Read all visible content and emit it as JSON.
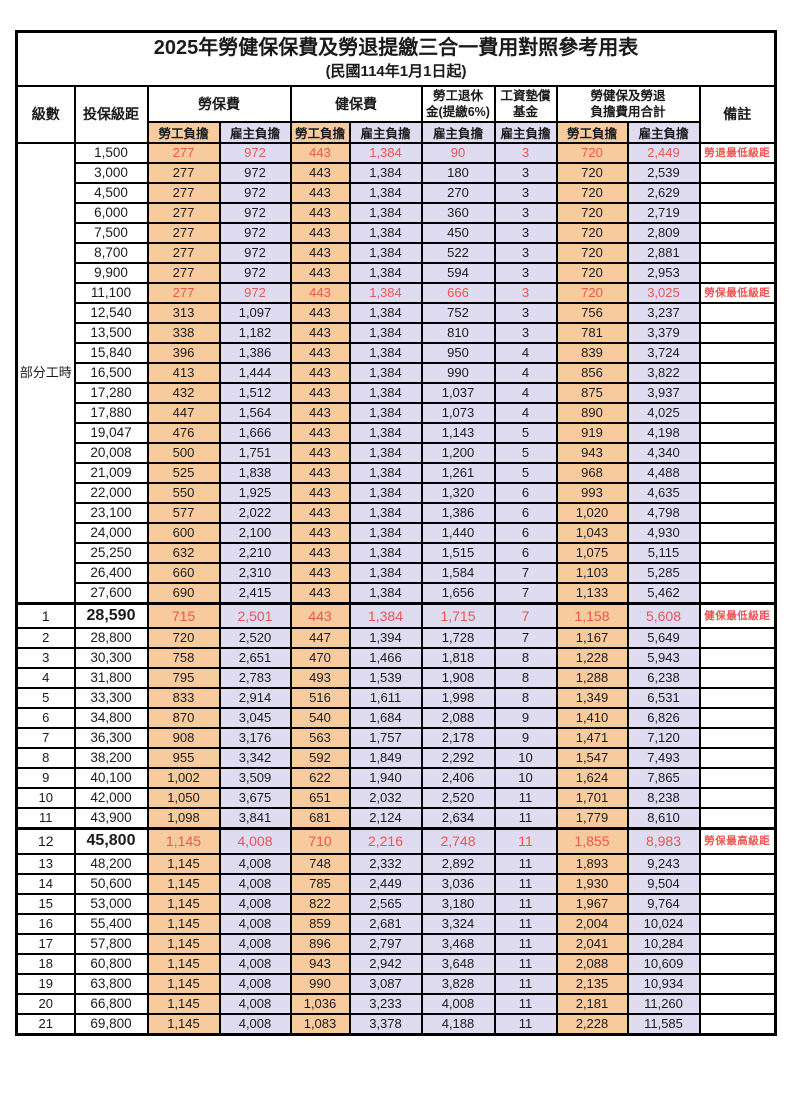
{
  "title": "2025年勞健保保費及勞退提繳三合一費用對照參考用表",
  "subtitle": "(民國114年1月1日起)",
  "colors": {
    "employee_bg": "#f8cb9e",
    "employer_bg": "#dfdbf1",
    "highlight_red": "#ee5550"
  },
  "header": {
    "level": "級數",
    "bracket": "投保級距",
    "labor": "勞保費",
    "health": "健保費",
    "pension_l1": "勞工退休",
    "pension_l2": "金(提繳6%)",
    "wagefund_l1": "工資墊償",
    "wagefund_l2": "基金",
    "total_l1": "勞健保及勞退",
    "total_l2": "負擔費用合計",
    "remark": "備註",
    "employee": "勞工負擔",
    "employer": "雇主負擔"
  },
  "part_time_label": "部分工時",
  "part_time_span": 23,
  "rows": [
    {
      "level": "",
      "bracket": "1,500",
      "values": [
        "277",
        "972",
        "443",
        "1,384",
        "90",
        "3",
        "720",
        "2,449"
      ],
      "remark": "勞退最低級距",
      "red": true
    },
    {
      "level": "",
      "bracket": "3,000",
      "values": [
        "277",
        "972",
        "443",
        "1,384",
        "180",
        "3",
        "720",
        "2,539"
      ],
      "remark": ""
    },
    {
      "level": "",
      "bracket": "4,500",
      "values": [
        "277",
        "972",
        "443",
        "1,384",
        "270",
        "3",
        "720",
        "2,629"
      ],
      "remark": ""
    },
    {
      "level": "",
      "bracket": "6,000",
      "values": [
        "277",
        "972",
        "443",
        "1,384",
        "360",
        "3",
        "720",
        "2,719"
      ],
      "remark": ""
    },
    {
      "level": "",
      "bracket": "7,500",
      "values": [
        "277",
        "972",
        "443",
        "1,384",
        "450",
        "3",
        "720",
        "2,809"
      ],
      "remark": ""
    },
    {
      "level": "",
      "bracket": "8,700",
      "values": [
        "277",
        "972",
        "443",
        "1,384",
        "522",
        "3",
        "720",
        "2,881"
      ],
      "remark": ""
    },
    {
      "level": "",
      "bracket": "9,900",
      "values": [
        "277",
        "972",
        "443",
        "1,384",
        "594",
        "3",
        "720",
        "2,953"
      ],
      "remark": ""
    },
    {
      "level": "",
      "bracket": "11,100",
      "values": [
        "277",
        "972",
        "443",
        "1,384",
        "666",
        "3",
        "720",
        "3,025"
      ],
      "remark": "勞保最低級距",
      "red": true
    },
    {
      "level": "",
      "bracket": "12,540",
      "values": [
        "313",
        "1,097",
        "443",
        "1,384",
        "752",
        "3",
        "756",
        "3,237"
      ],
      "remark": ""
    },
    {
      "level": "",
      "bracket": "13,500",
      "values": [
        "338",
        "1,182",
        "443",
        "1,384",
        "810",
        "3",
        "781",
        "3,379"
      ],
      "remark": ""
    },
    {
      "level": "",
      "bracket": "15,840",
      "values": [
        "396",
        "1,386",
        "443",
        "1,384",
        "950",
        "4",
        "839",
        "3,724"
      ],
      "remark": ""
    },
    {
      "level": "",
      "bracket": "16,500",
      "values": [
        "413",
        "1,444",
        "443",
        "1,384",
        "990",
        "4",
        "856",
        "3,822"
      ],
      "remark": ""
    },
    {
      "level": "",
      "bracket": "17,280",
      "values": [
        "432",
        "1,512",
        "443",
        "1,384",
        "1,037",
        "4",
        "875",
        "3,937"
      ],
      "remark": ""
    },
    {
      "level": "",
      "bracket": "17,880",
      "values": [
        "447",
        "1,564",
        "443",
        "1,384",
        "1,073",
        "4",
        "890",
        "4,025"
      ],
      "remark": ""
    },
    {
      "level": "",
      "bracket": "19,047",
      "values": [
        "476",
        "1,666",
        "443",
        "1,384",
        "1,143",
        "5",
        "919",
        "4,198"
      ],
      "remark": ""
    },
    {
      "level": "",
      "bracket": "20,008",
      "values": [
        "500",
        "1,751",
        "443",
        "1,384",
        "1,200",
        "5",
        "943",
        "4,340"
      ],
      "remark": ""
    },
    {
      "level": "",
      "bracket": "21,009",
      "values": [
        "525",
        "1,838",
        "443",
        "1,384",
        "1,261",
        "5",
        "968",
        "4,488"
      ],
      "remark": ""
    },
    {
      "level": "",
      "bracket": "22,000",
      "values": [
        "550",
        "1,925",
        "443",
        "1,384",
        "1,320",
        "6",
        "993",
        "4,635"
      ],
      "remark": ""
    },
    {
      "level": "",
      "bracket": "23,100",
      "values": [
        "577",
        "2,022",
        "443",
        "1,384",
        "1,386",
        "6",
        "1,020",
        "4,798"
      ],
      "remark": ""
    },
    {
      "level": "",
      "bracket": "24,000",
      "values": [
        "600",
        "2,100",
        "443",
        "1,384",
        "1,440",
        "6",
        "1,043",
        "4,930"
      ],
      "remark": ""
    },
    {
      "level": "",
      "bracket": "25,250",
      "values": [
        "632",
        "2,210",
        "443",
        "1,384",
        "1,515",
        "6",
        "1,075",
        "5,115"
      ],
      "remark": ""
    },
    {
      "level": "",
      "bracket": "26,400",
      "values": [
        "660",
        "2,310",
        "443",
        "1,384",
        "1,584",
        "7",
        "1,103",
        "5,285"
      ],
      "remark": ""
    },
    {
      "level": "",
      "bracket": "27,600",
      "values": [
        "690",
        "2,415",
        "443",
        "1,384",
        "1,656",
        "7",
        "1,133",
        "5,462"
      ],
      "remark": ""
    },
    {
      "level": "1",
      "bracket": "28,590",
      "values": [
        "715",
        "2,501",
        "443",
        "1,384",
        "1,715",
        "7",
        "1,158",
        "5,608"
      ],
      "remark": "健保最低級距",
      "red": true,
      "big": true,
      "thick_top": true
    },
    {
      "level": "2",
      "bracket": "28,800",
      "values": [
        "720",
        "2,520",
        "447",
        "1,394",
        "1,728",
        "7",
        "1,167",
        "5,649"
      ],
      "remark": ""
    },
    {
      "level": "3",
      "bracket": "30,300",
      "values": [
        "758",
        "2,651",
        "470",
        "1,466",
        "1,818",
        "8",
        "1,228",
        "5,943"
      ],
      "remark": ""
    },
    {
      "level": "4",
      "bracket": "31,800",
      "values": [
        "795",
        "2,783",
        "493",
        "1,539",
        "1,908",
        "8",
        "1,288",
        "6,238"
      ],
      "remark": ""
    },
    {
      "level": "5",
      "bracket": "33,300",
      "values": [
        "833",
        "2,914",
        "516",
        "1,611",
        "1,998",
        "8",
        "1,349",
        "6,531"
      ],
      "remark": ""
    },
    {
      "level": "6",
      "bracket": "34,800",
      "values": [
        "870",
        "3,045",
        "540",
        "1,684",
        "2,088",
        "9",
        "1,410",
        "6,826"
      ],
      "remark": ""
    },
    {
      "level": "7",
      "bracket": "36,300",
      "values": [
        "908",
        "3,176",
        "563",
        "1,757",
        "2,178",
        "9",
        "1,471",
        "7,120"
      ],
      "remark": ""
    },
    {
      "level": "8",
      "bracket": "38,200",
      "values": [
        "955",
        "3,342",
        "592",
        "1,849",
        "2,292",
        "10",
        "1,547",
        "7,493"
      ],
      "remark": ""
    },
    {
      "level": "9",
      "bracket": "40,100",
      "values": [
        "1,002",
        "3,509",
        "622",
        "1,940",
        "2,406",
        "10",
        "1,624",
        "7,865"
      ],
      "remark": ""
    },
    {
      "level": "10",
      "bracket": "42,000",
      "values": [
        "1,050",
        "3,675",
        "651",
        "2,032",
        "2,520",
        "11",
        "1,701",
        "8,238"
      ],
      "remark": ""
    },
    {
      "level": "11",
      "bracket": "43,900",
      "values": [
        "1,098",
        "3,841",
        "681",
        "2,124",
        "2,634",
        "11",
        "1,779",
        "8,610"
      ],
      "remark": ""
    },
    {
      "level": "12",
      "bracket": "45,800",
      "values": [
        "1,145",
        "4,008",
        "710",
        "2,216",
        "2,748",
        "11",
        "1,855",
        "8,983"
      ],
      "remark": "勞保最高級距",
      "red": true,
      "big": true,
      "thick_top": true
    },
    {
      "level": "13",
      "bracket": "48,200",
      "values": [
        "1,145",
        "4,008",
        "748",
        "2,332",
        "2,892",
        "11",
        "1,893",
        "9,243"
      ],
      "remark": ""
    },
    {
      "level": "14",
      "bracket": "50,600",
      "values": [
        "1,145",
        "4,008",
        "785",
        "2,449",
        "3,036",
        "11",
        "1,930",
        "9,504"
      ],
      "remark": ""
    },
    {
      "level": "15",
      "bracket": "53,000",
      "values": [
        "1,145",
        "4,008",
        "822",
        "2,565",
        "3,180",
        "11",
        "1,967",
        "9,764"
      ],
      "remark": ""
    },
    {
      "level": "16",
      "bracket": "55,400",
      "values": [
        "1,145",
        "4,008",
        "859",
        "2,681",
        "3,324",
        "11",
        "2,004",
        "10,024"
      ],
      "remark": ""
    },
    {
      "level": "17",
      "bracket": "57,800",
      "values": [
        "1,145",
        "4,008",
        "896",
        "2,797",
        "3,468",
        "11",
        "2,041",
        "10,284"
      ],
      "remark": ""
    },
    {
      "level": "18",
      "bracket": "60,800",
      "values": [
        "1,145",
        "4,008",
        "943",
        "2,942",
        "3,648",
        "11",
        "2,088",
        "10,609"
      ],
      "remark": ""
    },
    {
      "level": "19",
      "bracket": "63,800",
      "values": [
        "1,145",
        "4,008",
        "990",
        "3,087",
        "3,828",
        "11",
        "2,135",
        "10,934"
      ],
      "remark": ""
    },
    {
      "level": "20",
      "bracket": "66,800",
      "values": [
        "1,145",
        "4,008",
        "1,036",
        "3,233",
        "4,008",
        "11",
        "2,181",
        "11,260"
      ],
      "remark": ""
    },
    {
      "level": "21",
      "bracket": "69,800",
      "values": [
        "1,145",
        "4,008",
        "1,083",
        "3,378",
        "4,188",
        "11",
        "2,228",
        "11,585"
      ],
      "remark": ""
    }
  ]
}
